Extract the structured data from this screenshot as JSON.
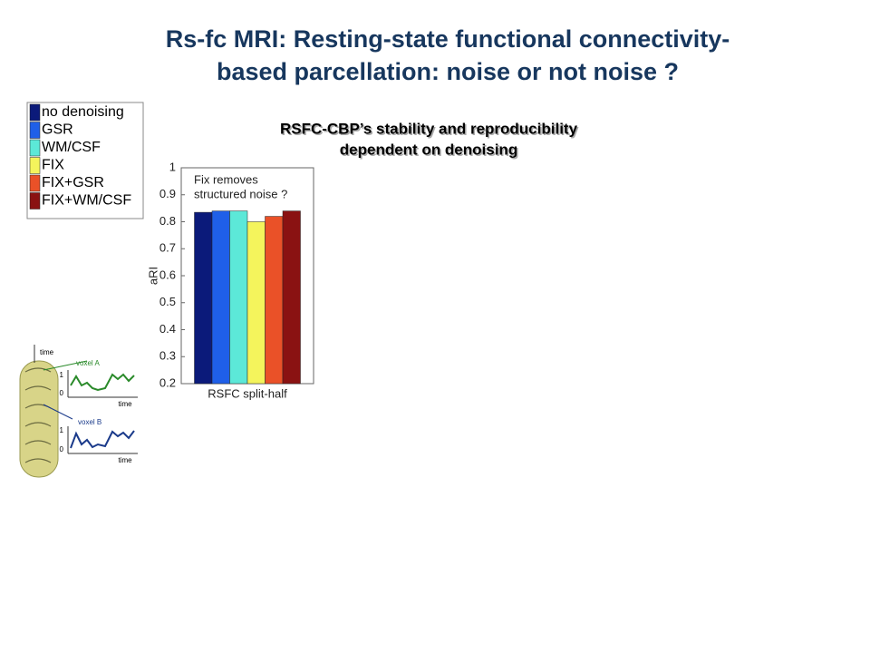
{
  "slide": {
    "title": [
      "Rs-fc MRI: Resting-state functional connectivity-",
      "based parcellation: noise or not noise ?"
    ]
  },
  "inset": {
    "axis": "time",
    "voxel_a": "voxel A",
    "voxel_b": "voxel B",
    "a_ticks": [
      "1",
      "0"
    ],
    "b_ticks": [
      "1",
      "0"
    ],
    "a_xlabel": "time",
    "b_xlabel": "time"
  },
  "chart_data": {
    "type": "bar",
    "title": [
      "RSFC-CBP’s stability and reproducibility",
      "dependent on denoising"
    ],
    "annotation": [
      "Fix removes",
      "structured noise ?"
    ],
    "categories": [
      "RSFC split-half"
    ],
    "y_label": "aRI",
    "series": [
      {
        "name": "no denoising",
        "color": "#0b1a7a",
        "values": [
          0.835
        ]
      },
      {
        "name": "GSR",
        "color": "#1f5fe8",
        "values": [
          0.84
        ]
      },
      {
        "name": "WM/CSF",
        "color": "#5ce8d8",
        "values": [
          0.84
        ]
      },
      {
        "name": "FIX",
        "color": "#f4f45c",
        "values": [
          0.8
        ]
      },
      {
        "name": "FIX+GSR",
        "color": "#ea5128",
        "values": [
          0.82
        ]
      },
      {
        "name": "FIX+WM/CSF",
        "color": "#8a1212",
        "values": [
          0.84
        ]
      }
    ],
    "ylim": [
      0.2,
      1
    ],
    "yticks": [
      0.2,
      0.3,
      0.4,
      0.5,
      0.6,
      0.7,
      0.8,
      0.9,
      1
    ],
    "grid": false
  }
}
